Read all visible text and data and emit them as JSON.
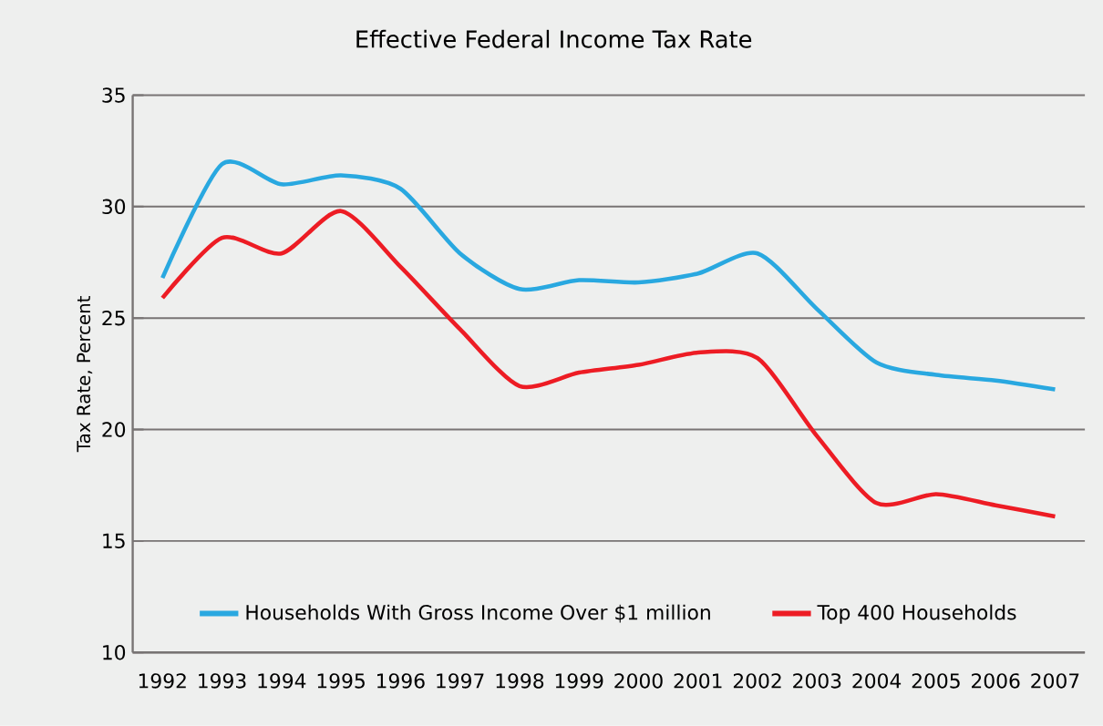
{
  "chart_data": {
    "type": "line",
    "title": "Effective Federal Income Tax Rate",
    "ylabel": "Tax Rate, Percent",
    "categories": [
      "1992",
      "1993",
      "1994",
      "1995",
      "1996",
      "1997",
      "1998",
      "1999",
      "2000",
      "2001",
      "2002",
      "2003",
      "2004",
      "2005",
      "2006",
      "2007"
    ],
    "series": [
      {
        "name": "Households With Gross Income Over $1 million",
        "color": "#29a8e0",
        "values": [
          26.8,
          31.9,
          31.0,
          31.4,
          30.8,
          27.9,
          26.3,
          26.7,
          26.6,
          27.0,
          27.9,
          25.4,
          23.0,
          22.45,
          22.2,
          21.8
        ]
      },
      {
        "name": "Top 400 Households",
        "color": "#ed1c24",
        "values": [
          25.9,
          28.6,
          27.9,
          29.8,
          27.3,
          24.5,
          21.95,
          22.55,
          22.9,
          23.45,
          23.2,
          19.7,
          16.7,
          17.1,
          16.6,
          16.1
        ]
      }
    ],
    "ylim": [
      10,
      35
    ],
    "yticks": [
      10,
      15,
      20,
      25,
      30,
      35
    ],
    "grid": "y",
    "legend": "bottom",
    "line_style": "solid",
    "marker": "none"
  }
}
